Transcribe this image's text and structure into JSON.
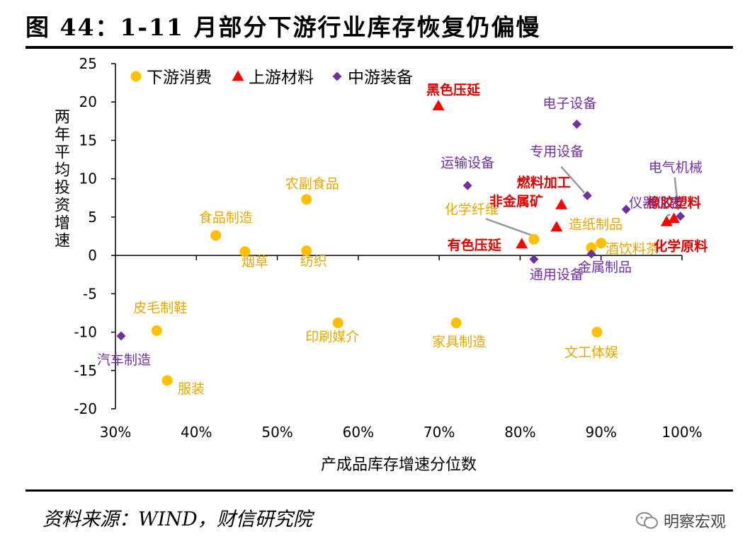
{
  "figure_title": "图 44：1-11 月部分下游行业库存恢复仍偏慢",
  "source_note": "资料来源：WIND，财信研究院",
  "watermark": "明察宏观",
  "colors": {
    "consumer": "#FFC000",
    "upstream": "#FF0000",
    "equipment": "#7030A0",
    "consumer_label": "#E6A800",
    "upstream_label": "#E00000",
    "equipment_label": "#7030A0"
  },
  "chart_data": {
    "type": "scatter",
    "title": "",
    "xlabel": "产成品库存增速分位数",
    "ylabel": "两年平均投资增速",
    "xlim": [
      0.3,
      1.0
    ],
    "ylim": [
      -20,
      25
    ],
    "x_ticks": [
      0.3,
      0.4,
      0.5,
      0.6,
      0.7,
      0.8,
      0.9,
      1.0
    ],
    "x_tick_labels": [
      "30%",
      "40%",
      "50%",
      "60%",
      "70%",
      "80%",
      "90%",
      "100%"
    ],
    "y_ticks": [
      25,
      20,
      15,
      10,
      5,
      0,
      -5,
      -10,
      -15,
      -20
    ],
    "y_tick_labels": [
      "25",
      "20",
      "15",
      "10",
      "5",
      "0",
      "-5",
      "-10",
      "-15",
      "-20"
    ],
    "legend_position": "top-left",
    "grid": false,
    "series": [
      {
        "name": "下游消费",
        "key": "consumer",
        "marker": "circle",
        "points": [
          {
            "label": "食品制造",
            "x": 0.424,
            "y": 2.6
          },
          {
            "label": "烟草",
            "x": 0.46,
            "y": 0.5
          },
          {
            "label": "农副食品",
            "x": 0.536,
            "y": 7.3
          },
          {
            "label": "纺织",
            "x": 0.536,
            "y": 0.6
          },
          {
            "label": "皮毛制鞋",
            "x": 0.351,
            "y": -9.8
          },
          {
            "label": "服装",
            "x": 0.364,
            "y": -16.3
          },
          {
            "label": "印刷媒介",
            "x": 0.575,
            "y": -8.8
          },
          {
            "label": "家具制造",
            "x": 0.721,
            "y": -8.8
          },
          {
            "label": "化学纤维",
            "x": 0.817,
            "y": 2.1
          },
          {
            "label": "造纸制品",
            "x": 0.888,
            "y": 1.0
          },
          {
            "label": "酒饮料茶",
            "x": 0.9,
            "y": 1.6
          },
          {
            "label": "文工体娱",
            "x": 0.895,
            "y": -10.0
          }
        ]
      },
      {
        "name": "上游材料",
        "key": "upstream",
        "marker": "triangle",
        "points": [
          {
            "label": "黑色压延",
            "x": 0.699,
            "y": 19.5
          },
          {
            "label": "燃料加工",
            "x": 0.851,
            "y": 6.6
          },
          {
            "label": "非金属矿",
            "x": 0.845,
            "y": 3.7
          },
          {
            "label": "有色压延",
            "x": 0.802,
            "y": 1.5
          },
          {
            "label": "橡胶塑料",
            "x": 0.99,
            "y": 4.8
          },
          {
            "label": "化学原料",
            "x": 0.981,
            "y": 4.4
          }
        ]
      },
      {
        "name": "中游装备",
        "key": "equipment",
        "marker": "diamond",
        "points": [
          {
            "label": "电子设备",
            "x": 0.87,
            "y": 17.1
          },
          {
            "label": "运输设备",
            "x": 0.735,
            "y": 9.1
          },
          {
            "label": "专用设备",
            "x": 0.883,
            "y": 7.8
          },
          {
            "label": "仪器仪表",
            "x": 0.931,
            "y": 6.0
          },
          {
            "label": "电气机械",
            "x": 0.998,
            "y": 5.1
          },
          {
            "label": "通用设备",
            "x": 0.817,
            "y": -0.5
          },
          {
            "label": "金属制品",
            "x": 0.888,
            "y": 0.2
          },
          {
            "label": "汽车制造",
            "x": 0.307,
            "y": -10.5
          }
        ]
      }
    ]
  }
}
